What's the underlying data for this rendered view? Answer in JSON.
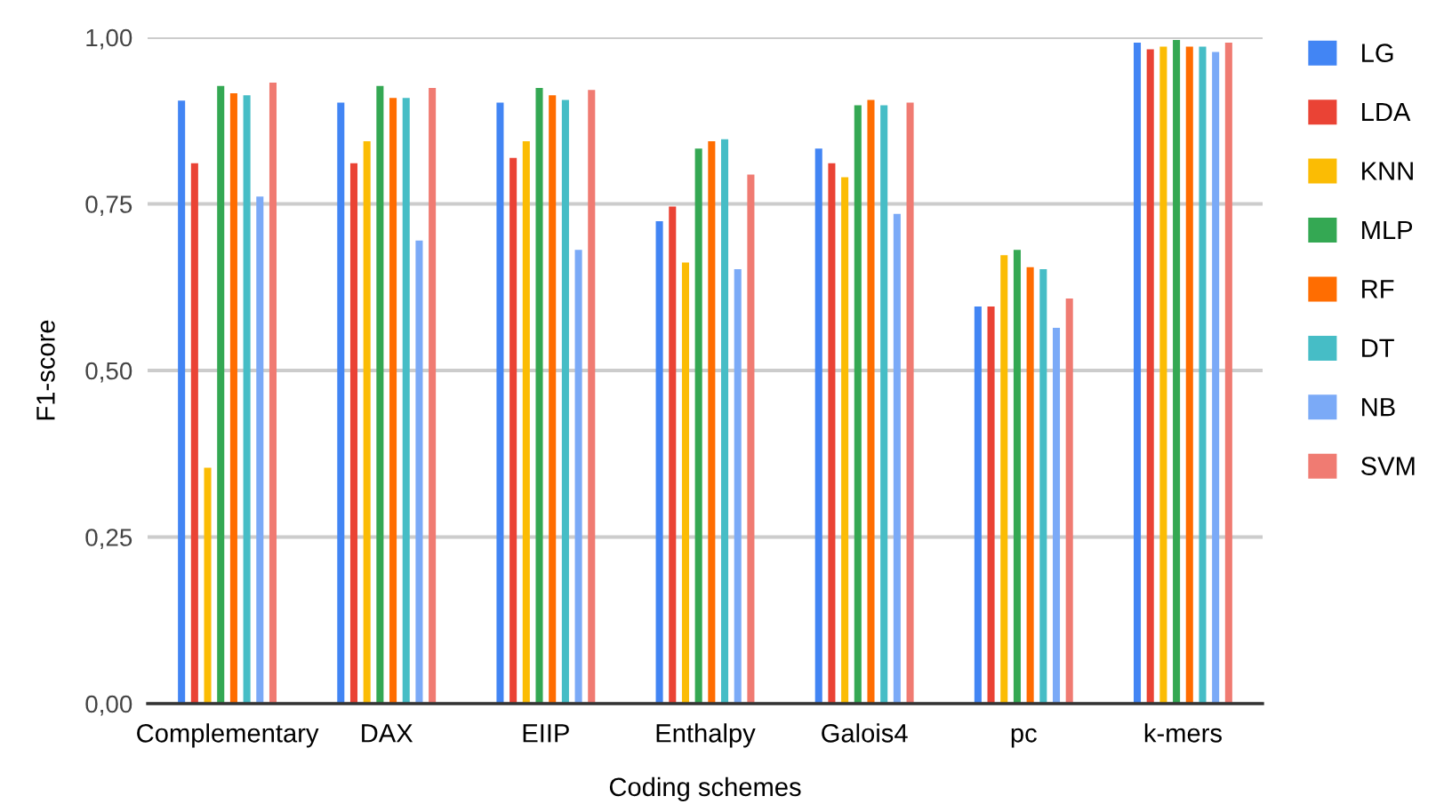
{
  "chart_data": {
    "type": "bar",
    "xlabel": "Coding schemes",
    "ylabel": "F1-score",
    "categories": [
      "Complementary",
      "DAX",
      "EIIP",
      "Enthalpy",
      "Galois4",
      "pc",
      "k-mers"
    ],
    "series": [
      {
        "name": "LG",
        "color": "#4285f4",
        "values": [
          0.905,
          0.902,
          0.902,
          0.724,
          0.833,
          0.596,
          0.992
        ]
      },
      {
        "name": "LDA",
        "color": "#ea4335",
        "values": [
          0.811,
          0.811,
          0.819,
          0.746,
          0.811,
          0.596,
          0.982
        ]
      },
      {
        "name": "KNN",
        "color": "#fbbc04",
        "values": [
          0.354,
          0.844,
          0.844,
          0.662,
          0.79,
          0.673,
          0.986
        ]
      },
      {
        "name": "MLP",
        "color": "#34a853",
        "values": [
          0.927,
          0.927,
          0.924,
          0.833,
          0.898,
          0.681,
          0.996
        ]
      },
      {
        "name": "RF",
        "color": "#ff6d01",
        "values": [
          0.916,
          0.909,
          0.913,
          0.844,
          0.906,
          0.655,
          0.986
        ]
      },
      {
        "name": "DT",
        "color": "#46bdc6",
        "values": [
          0.913,
          0.909,
          0.906,
          0.847,
          0.898,
          0.652,
          0.986
        ]
      },
      {
        "name": "NB",
        "color": "#7baaf7",
        "values": [
          0.761,
          0.695,
          0.681,
          0.652,
          0.735,
          0.564,
          0.978
        ]
      },
      {
        "name": "SVM",
        "color": "#f07b72",
        "values": [
          0.932,
          0.924,
          0.921,
          0.794,
          0.902,
          0.608,
          0.992
        ]
      }
    ],
    "ylim": [
      0,
      1
    ],
    "yticks": [
      {
        "value": 0,
        "label": "0,00"
      },
      {
        "value": 0.25,
        "label": "0,25"
      },
      {
        "value": 0.5,
        "label": "0,50"
      },
      {
        "value": 0.75,
        "label": "0,75"
      },
      {
        "value": 1,
        "label": "1,00"
      }
    ],
    "grid": "y",
    "legend": "right"
  }
}
